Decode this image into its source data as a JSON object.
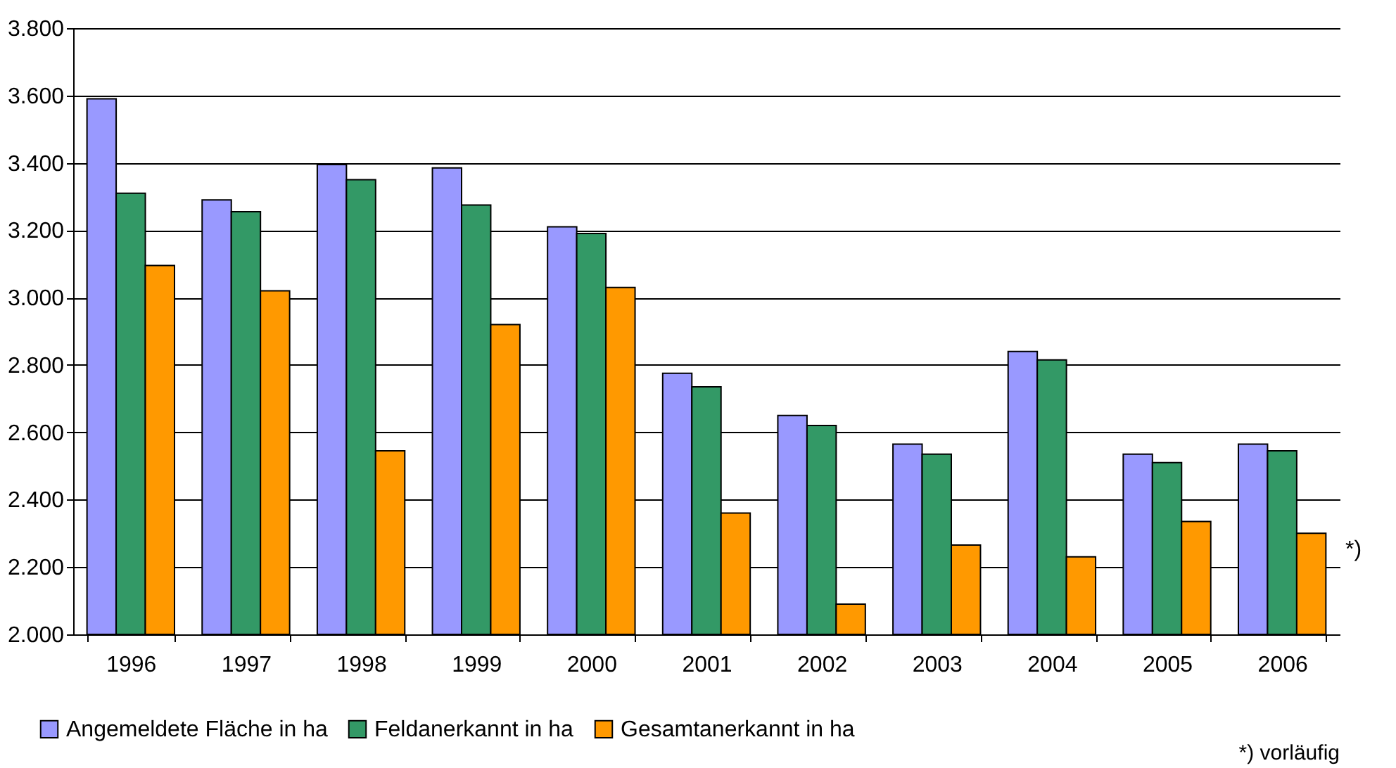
{
  "chart_data": {
    "type": "bar",
    "categories": [
      "1996",
      "1997",
      "1998",
      "1999",
      "2000",
      "2001",
      "2002",
      "2003",
      "2004",
      "2005",
      "2006"
    ],
    "series": [
      {
        "name": "Angemeldete Fläche in ha",
        "color": "#9999ff",
        "values": [
          3590,
          3290,
          3395,
          3385,
          3210,
          2775,
          2650,
          2565,
          2840,
          2535,
          2565
        ]
      },
      {
        "name": "Feldanerkannt in ha",
        "color": "#339966",
        "values": [
          3310,
          3255,
          3350,
          3275,
          3190,
          2735,
          2620,
          2535,
          2815,
          2510,
          2545
        ]
      },
      {
        "name": "Gesamtanerkannt in ha",
        "color": "#ff9900",
        "values": [
          3095,
          3020,
          2545,
          2920,
          3030,
          2360,
          2090,
          2265,
          2230,
          2335,
          2300
        ]
      }
    ],
    "ylim": [
      2000,
      3800
    ],
    "yticks": [
      {
        "value": 2000,
        "label": "2.000"
      },
      {
        "value": 2200,
        "label": "2.200"
      },
      {
        "value": 2400,
        "label": "2.400"
      },
      {
        "value": 2600,
        "label": "2.600"
      },
      {
        "value": 2800,
        "label": "2.800"
      },
      {
        "value": 3000,
        "label": "3.000"
      },
      {
        "value": 3200,
        "label": "3.200"
      },
      {
        "value": 3400,
        "label": "3.400"
      },
      {
        "value": 3600,
        "label": "3.600"
      },
      {
        "value": 3800,
        "label": "3.800"
      }
    ],
    "grid": "y",
    "legend": "bottom",
    "annotations": [
      "*)",
      "*) vorläufig"
    ]
  }
}
